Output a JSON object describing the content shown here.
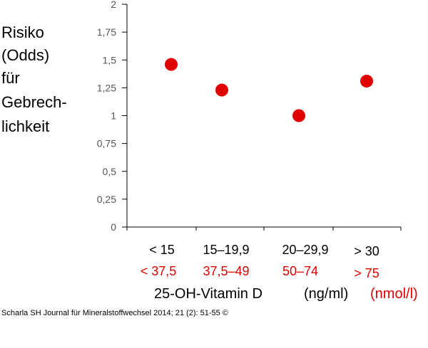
{
  "chart_data": {
    "type": "scatter",
    "ylabel_lines": [
      "Risiko",
      "(Odds)",
      "für",
      "Gebrech-",
      "lichkeit"
    ],
    "categories": [
      "< 15",
      "15–19,9",
      "20–29,9",
      "> 30"
    ],
    "categories_secondary": [
      "< 37,5",
      "37,5–49",
      "50–74",
      "> 75"
    ],
    "values": [
      1.46,
      1.23,
      1.0,
      1.31
    ],
    "ylim": [
      0,
      2
    ],
    "yticks": [
      0,
      0.25,
      0.5,
      0.75,
      1,
      1.25,
      1.5,
      1.75,
      2
    ],
    "ytick_labels": [
      "0",
      "0,25",
      "0,5",
      "0,75",
      "1",
      "1,25",
      "1,5",
      "1,75",
      "2"
    ],
    "xlabel": "25-OH-Vitamin D",
    "xunit_primary": "(ng/ml)",
    "xunit_secondary": "(nmol/l)",
    "marker_color": "#e00000",
    "secondary_label_color": "#e00000",
    "grid": false,
    "legend": "none"
  },
  "citation": "Scharla SH Journal für Mineralstoffwechsel 2014; 21 (2): 51-55 ©"
}
